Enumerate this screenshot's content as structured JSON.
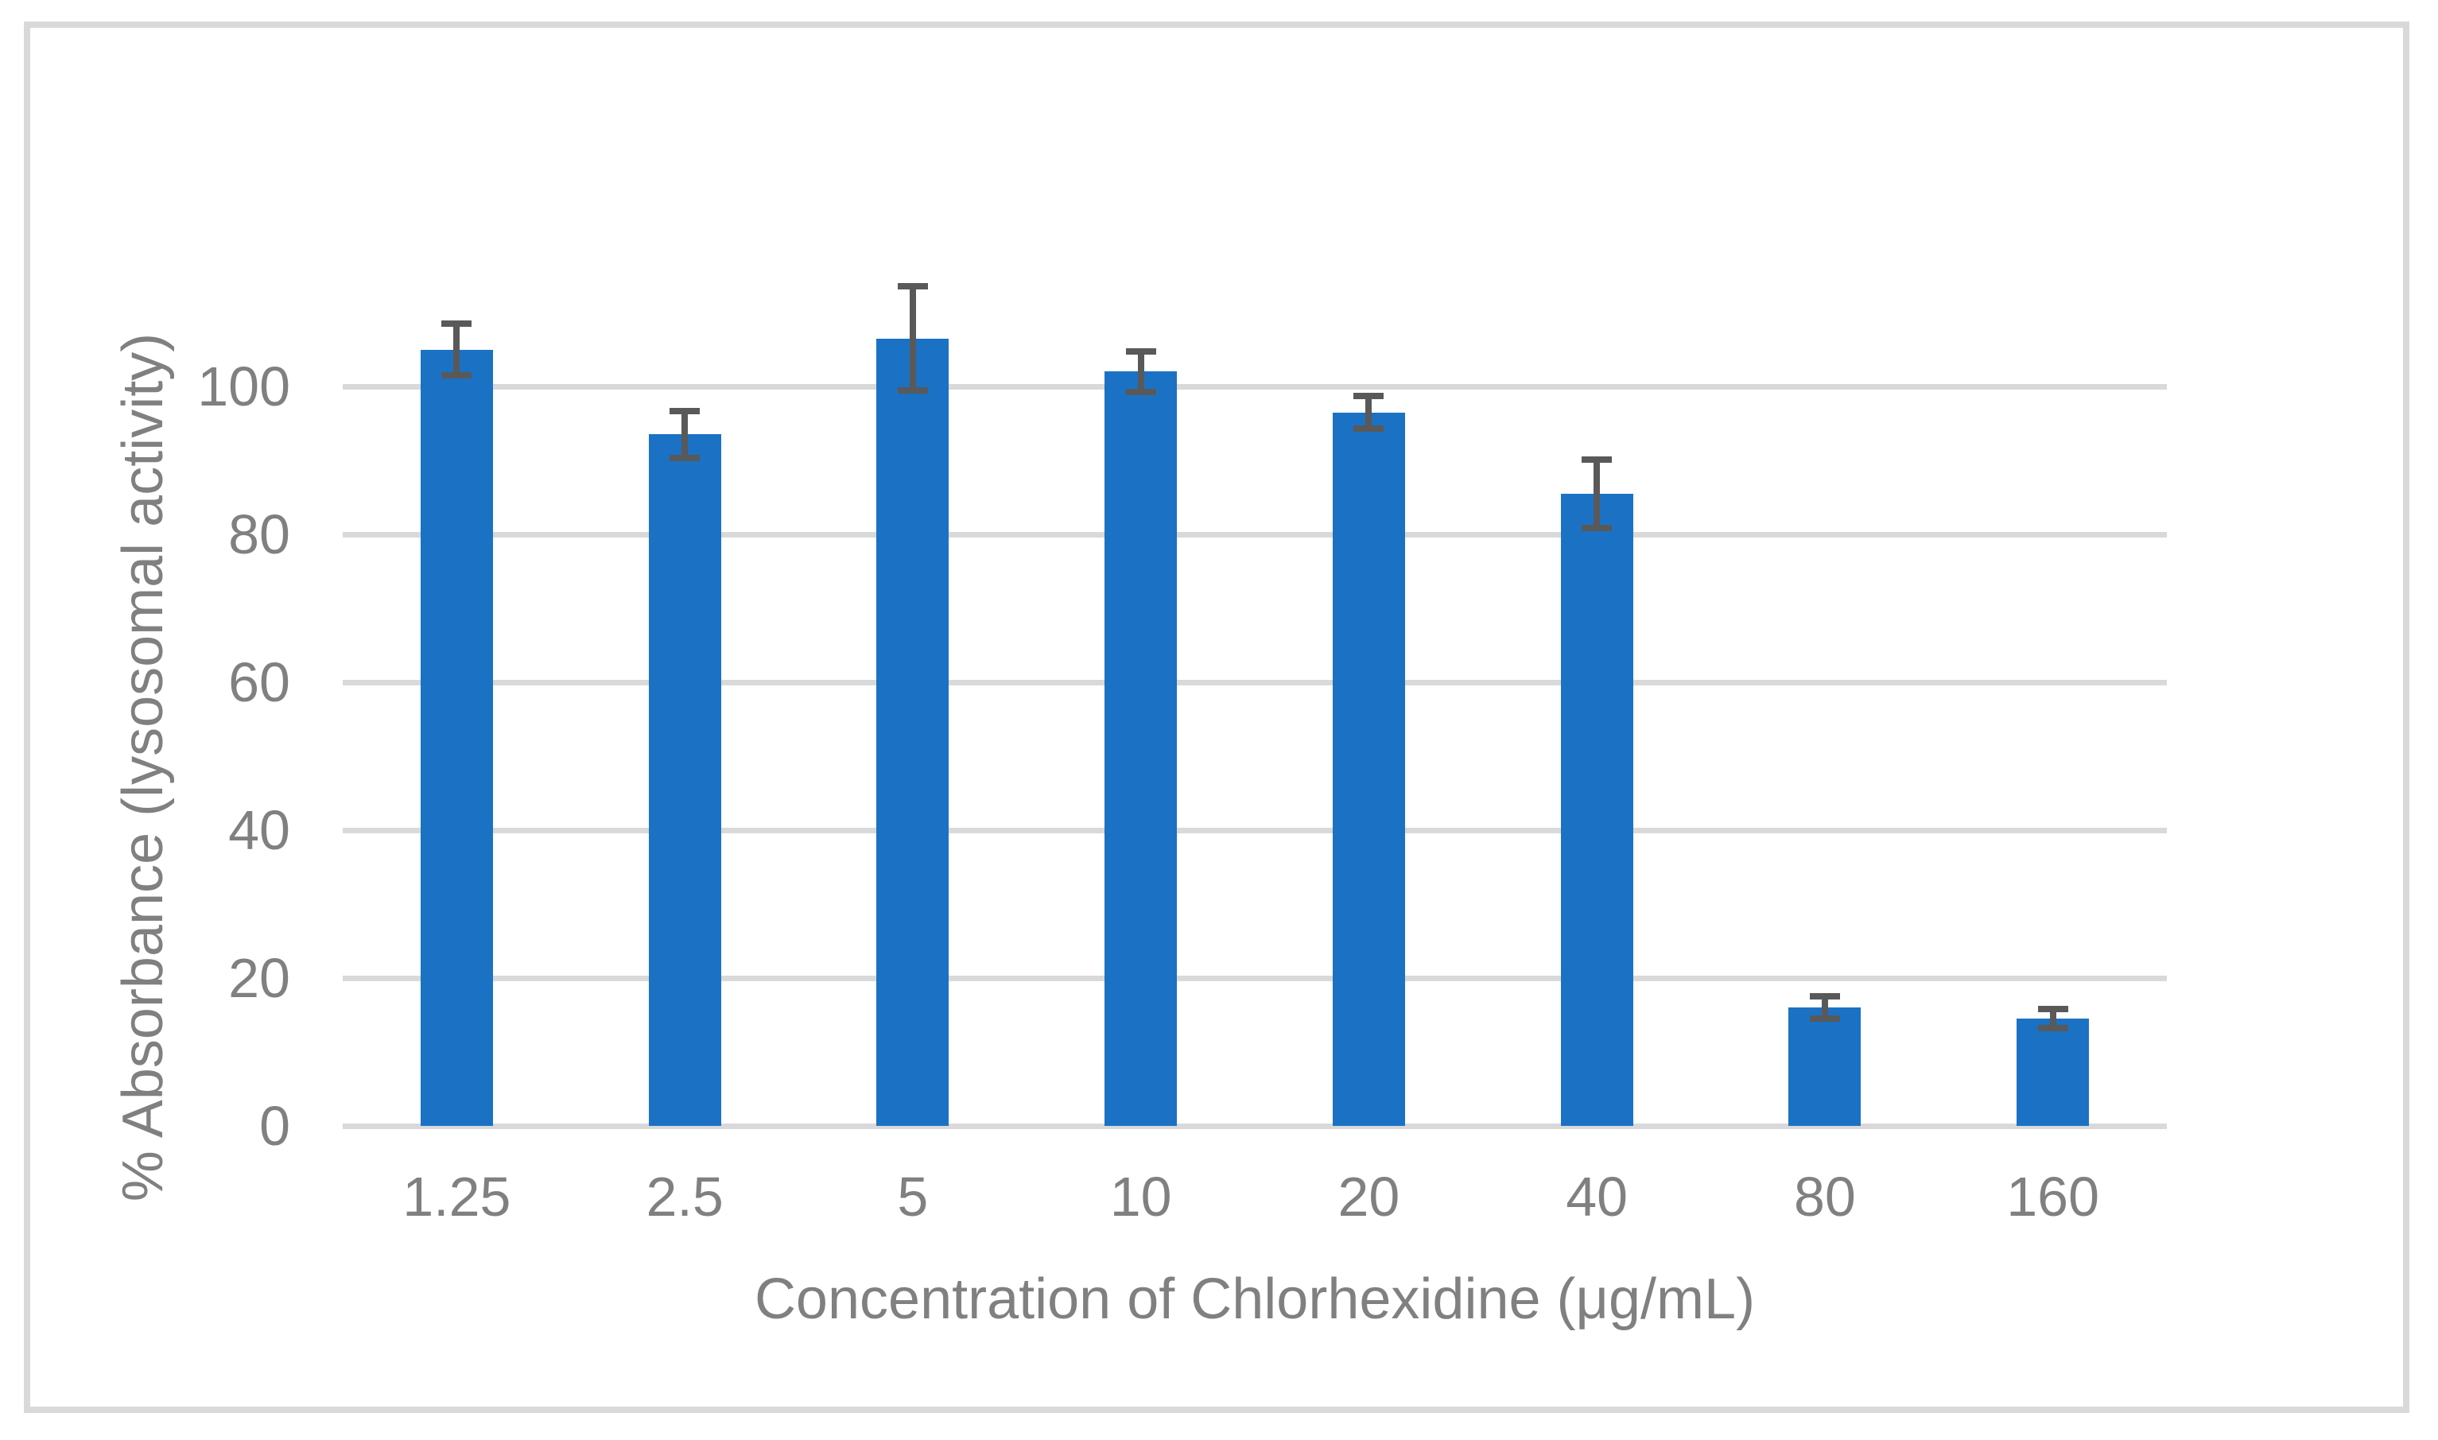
{
  "figure": {
    "background_color": "#FFFFFF",
    "border_color": "#D9D9D9"
  },
  "chart_data": {
    "type": "bar",
    "title": "",
    "xlabel": "Concentration of Chlorhexidine (μg/mL)",
    "ylabel": "% Absorbance (lysosomal activity)",
    "categories": [
      "1.25",
      "2.5",
      "5",
      "10",
      "20",
      "40",
      "80",
      "160"
    ],
    "values": [
      105,
      93.5,
      106.5,
      102,
      96.5,
      85.5,
      16,
      14.5
    ],
    "error_bars": [
      3.5,
      3.2,
      7.0,
      2.7,
      2.2,
      4.6,
      1.5,
      1.3
    ],
    "y_ticks": [
      0,
      20,
      40,
      60,
      80,
      100
    ],
    "ylim": [
      0,
      120
    ],
    "grid": true,
    "legend_position": "none",
    "bar_color": "#1B72C4",
    "error_bar_color": "#595959",
    "gridline_color": "#D9D9D9",
    "axis_text_color": "#808080"
  }
}
